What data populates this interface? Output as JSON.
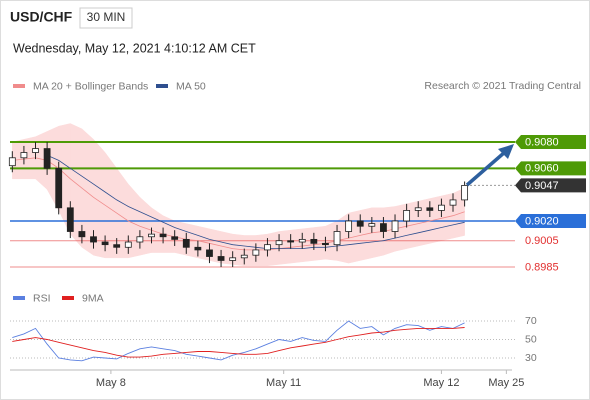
{
  "header": {
    "symbol": "USD/CHF",
    "interval": "30 MIN",
    "datetime": "Wednesday, May 12, 2021 4:10:12 AM CET"
  },
  "chart_data": [
    {
      "type": "candlestick",
      "source": "Research © 2021 Trading Central",
      "x": [
        0,
        1,
        2,
        3,
        4,
        5,
        6,
        7,
        8,
        9,
        10,
        11,
        12,
        13,
        14,
        15,
        16,
        17,
        18,
        19,
        20,
        21,
        22,
        23,
        24,
        25,
        26,
        27,
        28,
        29,
        30,
        31,
        32,
        33,
        34,
        35,
        36,
        37,
        38,
        39
      ],
      "open": [
        0.9062,
        0.9068,
        0.9072,
        0.9075,
        0.906,
        0.903,
        0.9012,
        0.9008,
        0.9004,
        0.9002,
        0.9,
        0.9004,
        0.9008,
        0.901,
        0.9008,
        0.9006,
        0.9,
        0.8998,
        0.8993,
        0.899,
        0.8992,
        0.8994,
        0.8998,
        0.9002,
        0.9005,
        0.9004,
        0.9006,
        0.9003,
        0.9002,
        0.9012,
        0.902,
        0.9016,
        0.9018,
        0.9012,
        0.902,
        0.9028,
        0.903,
        0.9028,
        0.9032,
        0.9036
      ],
      "high": [
        0.9073,
        0.9077,
        0.908,
        0.908,
        0.9065,
        0.9035,
        0.9017,
        0.9013,
        0.9009,
        0.9007,
        0.9009,
        0.9013,
        0.9015,
        0.9015,
        0.9013,
        0.9011,
        0.9005,
        0.9003,
        0.8998,
        0.8997,
        0.8999,
        0.9003,
        0.9007,
        0.901,
        0.901,
        0.9011,
        0.9011,
        0.9008,
        0.9017,
        0.9025,
        0.9025,
        0.9023,
        0.9023,
        0.9025,
        0.9033,
        0.9035,
        0.9035,
        0.9037,
        0.9041,
        0.905
      ],
      "low": [
        0.9057,
        0.9063,
        0.9067,
        0.9055,
        0.9025,
        0.9007,
        0.9003,
        0.8999,
        0.8997,
        0.8995,
        0.8995,
        0.8999,
        0.9003,
        0.9003,
        0.9001,
        0.8995,
        0.8993,
        0.8988,
        0.8985,
        0.8985,
        0.8987,
        0.8989,
        0.8993,
        0.8997,
        0.8999,
        0.8999,
        0.8998,
        0.8997,
        0.8997,
        0.9007,
        0.9011,
        0.9011,
        0.9007,
        0.9007,
        0.9015,
        0.9023,
        0.9023,
        0.9023,
        0.9027,
        0.9031
      ],
      "close": [
        0.9068,
        0.9072,
        0.9075,
        0.906,
        0.903,
        0.9012,
        0.9008,
        0.9004,
        0.9002,
        0.9,
        0.9004,
        0.9008,
        0.901,
        0.9008,
        0.9006,
        0.9,
        0.8998,
        0.8993,
        0.899,
        0.8992,
        0.8994,
        0.8998,
        0.9002,
        0.9005,
        0.9004,
        0.9006,
        0.9003,
        0.9002,
        0.9012,
        0.902,
        0.9016,
        0.9018,
        0.9012,
        0.902,
        0.9028,
        0.903,
        0.9028,
        0.9032,
        0.9036,
        0.9047
      ],
      "up_color": "#ffffff",
      "down_color": "#222222",
      "series": [
        {
          "name": "MA 20 + Bollinger Bands",
          "color": "#f08c8c",
          "band_color": "#fcdcdc",
          "values": [
            0.9066,
            0.9067,
            0.9068,
            0.9066,
            0.906,
            0.9052,
            0.9045,
            0.9038,
            0.9032,
            0.9026,
            0.902,
            0.9016,
            0.9013,
            0.901,
            0.9008,
            0.9006,
            0.9005,
            0.9003,
            0.9001,
            0.8999,
            0.8998,
            0.8998,
            0.8998,
            0.8999,
            0.9,
            0.9001,
            0.9002,
            0.9003,
            0.9005,
            0.9007,
            0.9009,
            0.9011,
            0.9012,
            0.9014,
            0.9016,
            0.9018,
            0.902,
            0.9022,
            0.9024,
            0.9027
          ],
          "upper": [
            0.908,
            0.9082,
            0.9084,
            0.9088,
            0.9092,
            0.9094,
            0.909,
            0.9082,
            0.9072,
            0.906,
            0.9048,
            0.9038,
            0.903,
            0.9024,
            0.902,
            0.9018,
            0.9016,
            0.9014,
            0.9012,
            0.901,
            0.9009,
            0.9009,
            0.901,
            0.9012,
            0.9013,
            0.9014,
            0.9015,
            0.9016,
            0.902,
            0.9026,
            0.9028,
            0.903,
            0.903,
            0.9031,
            0.9033,
            0.9035,
            0.9037,
            0.9039,
            0.9041,
            0.9045
          ],
          "lower": [
            0.9052,
            0.9052,
            0.9052,
            0.9044,
            0.9028,
            0.901,
            0.9,
            0.8994,
            0.8992,
            0.8992,
            0.8992,
            0.8994,
            0.8996,
            0.8996,
            0.8996,
            0.8994,
            0.8992,
            0.899,
            0.8988,
            0.8987,
            0.8986,
            0.8986,
            0.8986,
            0.8987,
            0.8988,
            0.8989,
            0.899,
            0.8991,
            0.899,
            0.8988,
            0.899,
            0.8992,
            0.8994,
            0.8997,
            0.8999,
            0.9001,
            0.9003,
            0.9005,
            0.9007,
            0.9009
          ]
        },
        {
          "name": "MA 50",
          "color": "#2f4f8f",
          "values": [
            null,
            null,
            null,
            0.907,
            0.9066,
            0.906,
            0.9054,
            0.9048,
            0.9042,
            0.9036,
            0.9031,
            0.9027,
            0.9023,
            0.9019,
            0.9015,
            0.9012,
            0.9009,
            0.9006,
            0.9004,
            0.9002,
            0.9001,
            0.9,
            0.8999,
            0.8999,
            0.8999,
            0.8999,
            0.9,
            0.9,
            0.9001,
            0.9002,
            0.9003,
            0.9004,
            0.9005,
            0.9007,
            0.9009,
            0.9011,
            0.9013,
            0.9015,
            0.9017,
            0.9019
          ]
        }
      ],
      "levels": [
        {
          "value": 0.908,
          "label": "0.9080",
          "color": "#4e9a06",
          "line": "thick",
          "boxed": true
        },
        {
          "value": 0.906,
          "label": "0.9060",
          "color": "#4e9a06",
          "line": "thick",
          "boxed": true
        },
        {
          "value": 0.9047,
          "label": "0.9047",
          "color": "#333333",
          "line": "dotted",
          "boxed": true
        },
        {
          "value": 0.902,
          "label": "0.9020",
          "color": "#2a6fd8",
          "line": "solid",
          "boxed": true
        },
        {
          "value": 0.9005,
          "label": "0.9005",
          "color": "#e23030",
          "line": "thin",
          "boxed": false
        },
        {
          "value": 0.8985,
          "label": "0.8985",
          "color": "#e23030",
          "line": "thin",
          "boxed": false
        }
      ],
      "ylim": [
        0.8975,
        0.911
      ],
      "xlim": [
        -0.2,
        43
      ],
      "xticks": [
        {
          "value": 8.5,
          "label": "May 8"
        },
        {
          "value": 23.4,
          "label": "May 11"
        },
        {
          "value": 37,
          "label": "May 12"
        },
        {
          "value": 42.6,
          "label": "May 25"
        }
      ]
    },
    {
      "type": "line",
      "series": [
        {
          "name": "RSI",
          "color": "#5a7fe0",
          "values": [
            52,
            56,
            62,
            45,
            30,
            28,
            27,
            31,
            30,
            29,
            35,
            40,
            42,
            40,
            38,
            34,
            32,
            30,
            28,
            33,
            36,
            40,
            45,
            50,
            48,
            52,
            49,
            48,
            60,
            70,
            62,
            64,
            55,
            62,
            66,
            65,
            60,
            64,
            62,
            68
          ]
        },
        {
          "name": "9MA",
          "color": "#e02020",
          "values": [
            48,
            50,
            52,
            50,
            47,
            44,
            41,
            38,
            36,
            33,
            31,
            31,
            32,
            34,
            35,
            36,
            37,
            37,
            36,
            35,
            34,
            34,
            35,
            38,
            41,
            43,
            45,
            47,
            50,
            53,
            55,
            57,
            58,
            60,
            61,
            62,
            62,
            62,
            62,
            63
          ]
        }
      ],
      "ylim": [
        20,
        80
      ],
      "yticks": [
        30,
        50,
        70
      ]
    }
  ]
}
